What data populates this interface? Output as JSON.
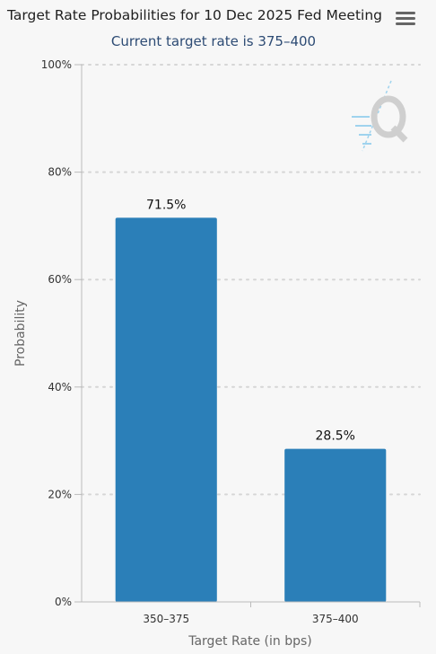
{
  "header": {
    "title": "Target Rate Probabilities for 10 Dec 2025 Fed Meeting",
    "subtitle": "Current target rate is 375–400",
    "menu_icon": "hamburger-menu-icon",
    "watermark_icon": "q-logo-icon"
  },
  "colors": {
    "bar": "#2b7fb8",
    "grid": "#d6d6d6",
    "axis": "#bbbbbb",
    "watermark": "#cfcfcf",
    "watermark_accent": "#9fd3ee"
  },
  "chart_data": {
    "type": "bar",
    "title": "Target Rate Probabilities for 10 Dec 2025 Fed Meeting",
    "subtitle": "Current target rate is 375–400",
    "xlabel": "Target Rate (in bps)",
    "ylabel": "Probability",
    "categories": [
      "350–375",
      "375–400"
    ],
    "values": [
      71.5,
      28.5
    ],
    "data_labels": [
      "71.5%",
      "28.5%"
    ],
    "ylim": [
      0,
      100
    ],
    "yticks": [
      0,
      20,
      40,
      60,
      80,
      100
    ],
    "ytick_labels": [
      "0%",
      "20%",
      "40%",
      "60%",
      "80%",
      "100%"
    ],
    "grid": true,
    "legend": "none"
  }
}
